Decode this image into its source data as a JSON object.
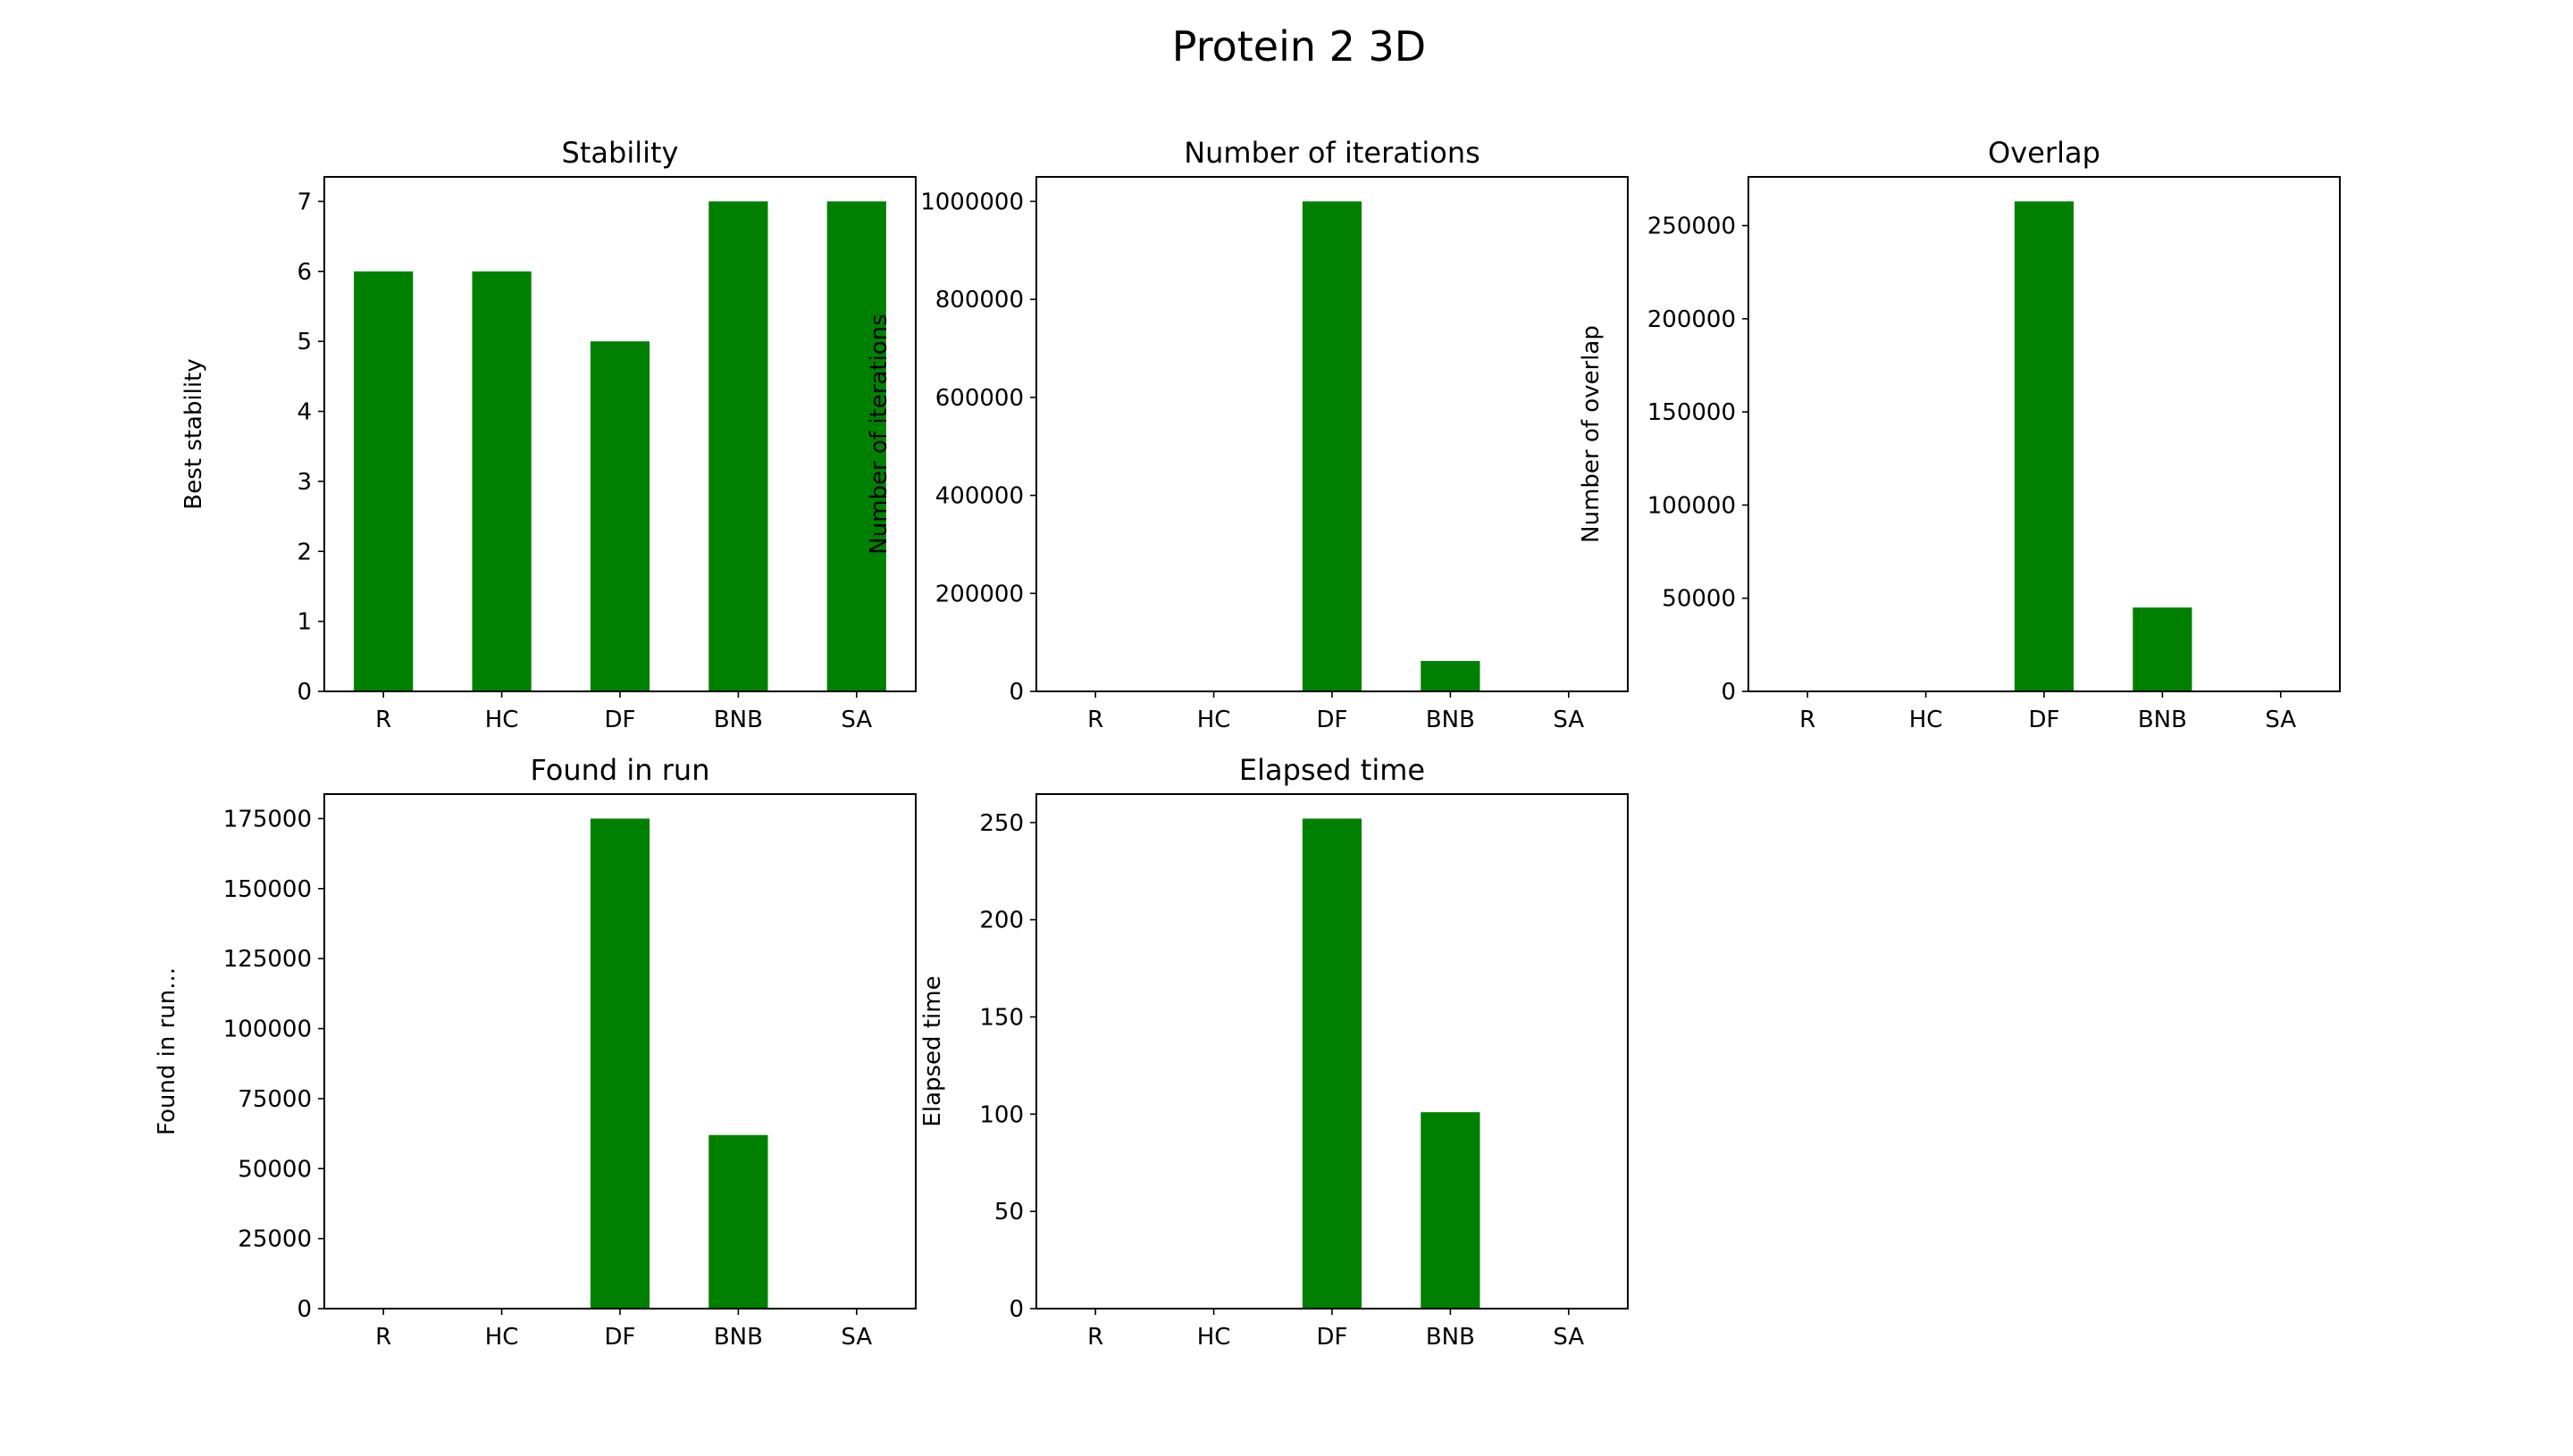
{
  "figure": {
    "title": "Protein 2 3D",
    "bar_color": "#008000"
  },
  "chart_data": [
    {
      "type": "bar",
      "title": "Stability",
      "xlabel": "",
      "ylabel": "Best stability",
      "categories": [
        "R",
        "HC",
        "DF",
        "BNB",
        "SA"
      ],
      "values": [
        6,
        6,
        5,
        7,
        7
      ],
      "ylim": [
        0,
        7.35
      ],
      "yticks": [
        0,
        1,
        2,
        3,
        4,
        5,
        6,
        7
      ],
      "grid": false
    },
    {
      "type": "bar",
      "title": "Number of iterations",
      "xlabel": "",
      "ylabel": "Number of iterations",
      "categories": [
        "R",
        "HC",
        "DF",
        "BNB",
        "SA"
      ],
      "values": [
        0,
        0,
        1000000,
        62000,
        0
      ],
      "ylim": [
        0,
        1050000
      ],
      "yticks": [
        0,
        200000,
        400000,
        600000,
        800000,
        1000000
      ],
      "grid": false
    },
    {
      "type": "bar",
      "title": "Overlap",
      "xlabel": "",
      "ylabel": "Number  of overlap",
      "categories": [
        "R",
        "HC",
        "DF",
        "BNB",
        "SA"
      ],
      "values": [
        0,
        0,
        263000,
        45000,
        0
      ],
      "ylim": [
        0,
        276150
      ],
      "yticks": [
        0,
        50000,
        100000,
        150000,
        200000,
        250000
      ],
      "grid": false
    },
    {
      "type": "bar",
      "title": "Found in run",
      "xlabel": "",
      "ylabel": "Found in run...",
      "categories": [
        "R",
        "HC",
        "DF",
        "BNB",
        "SA"
      ],
      "values": [
        0,
        0,
        175000,
        62000,
        0
      ],
      "ylim": [
        0,
        183750
      ],
      "yticks": [
        0,
        25000,
        50000,
        75000,
        100000,
        125000,
        150000,
        175000
      ],
      "grid": false
    },
    {
      "type": "bar",
      "title": "Elapsed time",
      "xlabel": "",
      "ylabel": "Elapsed time",
      "categories": [
        "R",
        "HC",
        "DF",
        "BNB",
        "SA"
      ],
      "values": [
        0,
        0,
        252,
        101,
        0
      ],
      "ylim": [
        0,
        264.6
      ],
      "yticks": [
        0,
        50,
        100,
        150,
        200,
        250
      ],
      "grid": false
    }
  ]
}
